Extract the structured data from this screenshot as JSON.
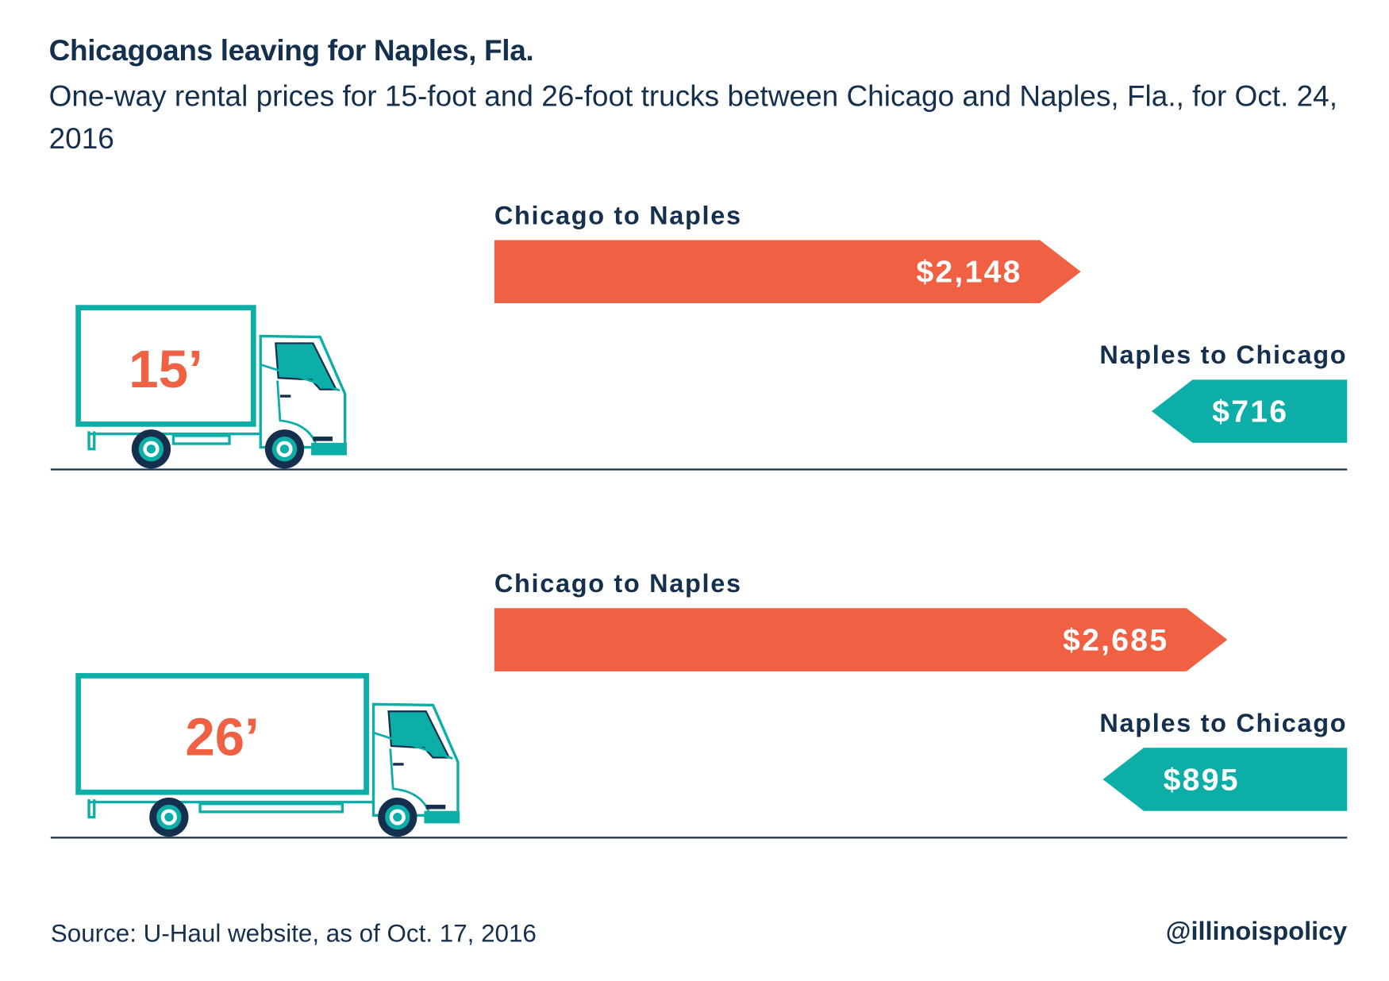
{
  "title": "Chicagoans leaving for Naples, Fla.",
  "subtitle": "One-way rental prices for 15-foot and 26-foot trucks between Chicago and Naples, Fla., for Oct. 24, 2016",
  "source": "Source: U-Haul website, as of Oct. 17, 2016",
  "handle": "@illinoispolicy",
  "colors": {
    "outbound": "#ef6142",
    "inbound": "#0daea7",
    "text": "#14304d"
  },
  "chart_data": {
    "type": "bar",
    "orientation": "horizontal",
    "groups": [
      {
        "truck_label": "15’",
        "bars": [
          {
            "label": "Chicago to Naples",
            "value": 2148,
            "value_label": "$2,148",
            "direction": "right"
          },
          {
            "label": "Naples to Chicago",
            "value": 716,
            "value_label": "$716",
            "direction": "left"
          }
        ]
      },
      {
        "truck_label": "26’",
        "bars": [
          {
            "label": "Chicago to Naples",
            "value": 2685,
            "value_label": "$2,685",
            "direction": "right"
          },
          {
            "label": "Naples to Chicago",
            "value": 895,
            "value_label": "$895",
            "direction": "left"
          }
        ]
      }
    ]
  }
}
